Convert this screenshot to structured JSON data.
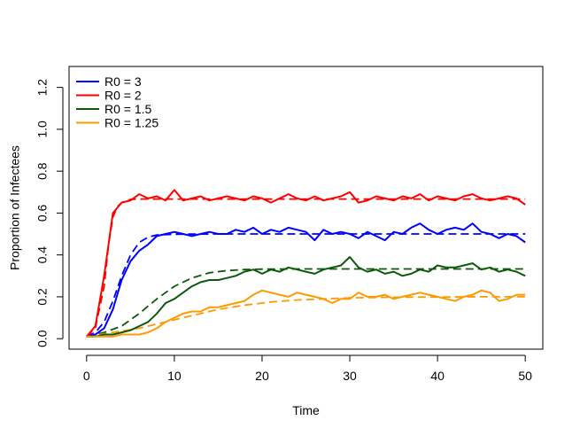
{
  "chart_data": {
    "type": "line",
    "title": "",
    "xlabel": "Time",
    "ylabel": "Proportion of Infectees",
    "xlim": [
      0,
      50
    ],
    "ylim": [
      0,
      1.25
    ],
    "x_ticks": [
      0,
      10,
      20,
      30,
      40,
      50
    ],
    "x_tick_labels": [
      "0",
      "10",
      "20",
      "30",
      "40",
      "50"
    ],
    "y_ticks": [
      0,
      0.2,
      0.4,
      0.6,
      0.8,
      1.0,
      1.2
    ],
    "y_tick_labels": [
      "0.0",
      "0.2",
      "0.4",
      "0.6",
      "0.8",
      "1.0",
      "1.2"
    ],
    "grid": false,
    "legend_position": "top-left",
    "series": [
      {
        "name": "R0 = 3",
        "color": "#0000ff",
        "deterministic_x": [
          0,
          1,
          2,
          3,
          4,
          5,
          6,
          7,
          8,
          10,
          15,
          20,
          30,
          40,
          50
        ],
        "deterministic_y": [
          0.01,
          0.03,
          0.08,
          0.18,
          0.3,
          0.4,
          0.46,
          0.485,
          0.495,
          0.499,
          0.5,
          0.5,
          0.5,
          0.5,
          0.5
        ],
        "stochastic_x": [
          0,
          1,
          2,
          3,
          4,
          5,
          6,
          7,
          8,
          9,
          10,
          11,
          12,
          13,
          14,
          15,
          16,
          17,
          18,
          19,
          20,
          21,
          22,
          23,
          24,
          25,
          26,
          27,
          28,
          29,
          30,
          31,
          32,
          33,
          34,
          35,
          36,
          37,
          38,
          39,
          40,
          41,
          42,
          43,
          44,
          45,
          46,
          47,
          48,
          49,
          50
        ],
        "stochastic_y": [
          0.01,
          0.02,
          0.05,
          0.14,
          0.28,
          0.37,
          0.42,
          0.45,
          0.49,
          0.5,
          0.51,
          0.5,
          0.49,
          0.5,
          0.51,
          0.5,
          0.5,
          0.52,
          0.51,
          0.53,
          0.5,
          0.52,
          0.51,
          0.53,
          0.52,
          0.51,
          0.47,
          0.52,
          0.5,
          0.51,
          0.5,
          0.48,
          0.51,
          0.49,
          0.47,
          0.51,
          0.5,
          0.53,
          0.55,
          0.52,
          0.5,
          0.52,
          0.53,
          0.52,
          0.55,
          0.51,
          0.5,
          0.48,
          0.5,
          0.49,
          0.46
        ]
      },
      {
        "name": "R0 = 2",
        "color": "#ff0000",
        "deterministic_x": [
          0,
          1,
          2,
          2.5,
          3,
          3.5,
          4,
          5,
          6,
          8,
          10,
          20,
          30,
          40,
          50
        ],
        "deterministic_y": [
          0.01,
          0.05,
          0.25,
          0.45,
          0.58,
          0.63,
          0.65,
          0.665,
          0.667,
          0.667,
          0.667,
          0.667,
          0.667,
          0.667,
          0.667
        ],
        "stochastic_x": [
          0,
          1,
          2,
          3,
          4,
          5,
          6,
          7,
          8,
          9,
          10,
          11,
          12,
          13,
          14,
          15,
          16,
          17,
          18,
          19,
          20,
          21,
          22,
          23,
          24,
          25,
          26,
          27,
          28,
          29,
          30,
          31,
          32,
          33,
          34,
          35,
          36,
          37,
          38,
          39,
          40,
          41,
          42,
          43,
          44,
          45,
          46,
          47,
          48,
          49,
          50
        ],
        "stochastic_y": [
          0.01,
          0.06,
          0.3,
          0.6,
          0.65,
          0.66,
          0.69,
          0.67,
          0.68,
          0.66,
          0.71,
          0.66,
          0.67,
          0.68,
          0.66,
          0.67,
          0.68,
          0.67,
          0.66,
          0.68,
          0.67,
          0.65,
          0.67,
          0.69,
          0.67,
          0.66,
          0.68,
          0.66,
          0.67,
          0.68,
          0.7,
          0.65,
          0.66,
          0.68,
          0.67,
          0.66,
          0.68,
          0.67,
          0.69,
          0.66,
          0.68,
          0.67,
          0.66,
          0.68,
          0.69,
          0.67,
          0.66,
          0.67,
          0.68,
          0.67,
          0.64
        ]
      },
      {
        "name": "R0 = 1.5",
        "color": "#0b5a0b",
        "deterministic_x": [
          0,
          2,
          4,
          6,
          8,
          10,
          12,
          14,
          16,
          18,
          20,
          25,
          30,
          40,
          50
        ],
        "deterministic_y": [
          0.01,
          0.03,
          0.06,
          0.12,
          0.19,
          0.25,
          0.29,
          0.315,
          0.325,
          0.33,
          0.332,
          0.333,
          0.333,
          0.333,
          0.333
        ],
        "stochastic_x": [
          0,
          1,
          2,
          3,
          4,
          5,
          6,
          7,
          8,
          9,
          10,
          11,
          12,
          13,
          14,
          15,
          16,
          17,
          18,
          19,
          20,
          21,
          22,
          23,
          24,
          25,
          26,
          27,
          28,
          29,
          30,
          31,
          32,
          33,
          34,
          35,
          36,
          37,
          38,
          39,
          40,
          41,
          42,
          43,
          44,
          45,
          46,
          47,
          48,
          49,
          50
        ],
        "stochastic_y": [
          0.01,
          0.01,
          0.02,
          0.02,
          0.03,
          0.04,
          0.06,
          0.08,
          0.12,
          0.17,
          0.19,
          0.22,
          0.25,
          0.27,
          0.28,
          0.28,
          0.29,
          0.3,
          0.32,
          0.33,
          0.31,
          0.33,
          0.32,
          0.34,
          0.33,
          0.32,
          0.31,
          0.33,
          0.34,
          0.35,
          0.39,
          0.34,
          0.32,
          0.33,
          0.31,
          0.32,
          0.3,
          0.31,
          0.33,
          0.32,
          0.35,
          0.34,
          0.34,
          0.35,
          0.36,
          0.33,
          0.34,
          0.32,
          0.33,
          0.32,
          0.3
        ]
      },
      {
        "name": "R0 = 1.25",
        "color": "#ff9900",
        "deterministic_x": [
          0,
          3,
          6,
          9,
          12,
          15,
          18,
          21,
          24,
          27,
          30,
          35,
          40,
          45,
          50
        ],
        "deterministic_y": [
          0.01,
          0.03,
          0.05,
          0.08,
          0.11,
          0.14,
          0.16,
          0.175,
          0.185,
          0.19,
          0.195,
          0.198,
          0.199,
          0.2,
          0.2
        ],
        "stochastic_x": [
          0,
          1,
          2,
          3,
          4,
          5,
          6,
          7,
          8,
          9,
          10,
          11,
          12,
          13,
          14,
          15,
          16,
          17,
          18,
          19,
          20,
          21,
          22,
          23,
          24,
          25,
          26,
          27,
          28,
          29,
          30,
          31,
          32,
          33,
          34,
          35,
          36,
          37,
          38,
          39,
          40,
          41,
          42,
          43,
          44,
          45,
          46,
          47,
          48,
          49,
          50
        ],
        "stochastic_y": [
          0.01,
          0.01,
          0.01,
          0.01,
          0.02,
          0.02,
          0.02,
          0.03,
          0.05,
          0.08,
          0.1,
          0.12,
          0.13,
          0.13,
          0.15,
          0.15,
          0.16,
          0.17,
          0.18,
          0.21,
          0.23,
          0.22,
          0.21,
          0.2,
          0.22,
          0.21,
          0.2,
          0.19,
          0.17,
          0.19,
          0.19,
          0.22,
          0.2,
          0.2,
          0.21,
          0.19,
          0.2,
          0.21,
          0.22,
          0.21,
          0.2,
          0.19,
          0.18,
          0.2,
          0.21,
          0.23,
          0.22,
          0.18,
          0.19,
          0.21,
          0.21
        ]
      }
    ]
  }
}
